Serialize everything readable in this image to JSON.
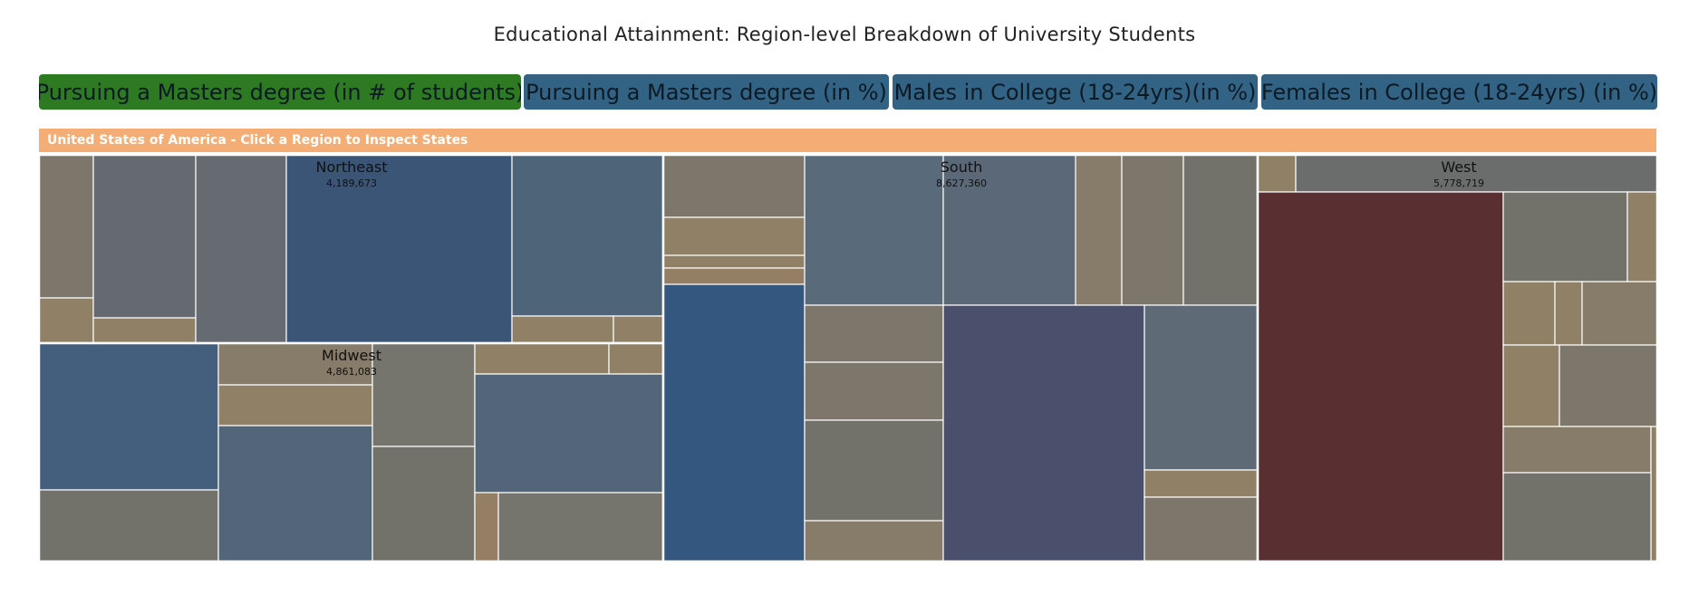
{
  "header": {
    "title": "Educational Attainment: Region-level Breakdown of University Students"
  },
  "tabs": [
    {
      "label": "Pursuing a Masters degree (in # of students)",
      "active": true
    },
    {
      "label": "Pursuing a Masters degree (in %)",
      "active": false
    },
    {
      "label": "Males in College (18-24yrs)(in %)",
      "active": false
    },
    {
      "label": "Females in College (18-24yrs) (in %)",
      "active": false
    }
  ],
  "breadcrumb": {
    "label": "United States of America - Click a Region to Inspect States"
  },
  "colors": {
    "active_tab": "#2e7a22",
    "inactive_tab": "#336384",
    "breadcrumb": "#f4ad74",
    "tile_border": "#ffffff"
  },
  "chart_data": {
    "type": "treemap",
    "title": "Educational Attainment: Region-level Breakdown of University Students",
    "measure": "Pursuing a Masters degree (in # of students)",
    "regions": [
      {
        "name": "Northeast",
        "value": 4189673,
        "value_label": "4,189,673"
      },
      {
        "name": "Midwest",
        "value": 4861083,
        "value_label": "4,861,083"
      },
      {
        "name": "South",
        "value": 8627360,
        "value_label": "8,627,360"
      },
      {
        "name": "West",
        "value": 5778719,
        "value_label": "5,778,719"
      }
    ]
  }
}
